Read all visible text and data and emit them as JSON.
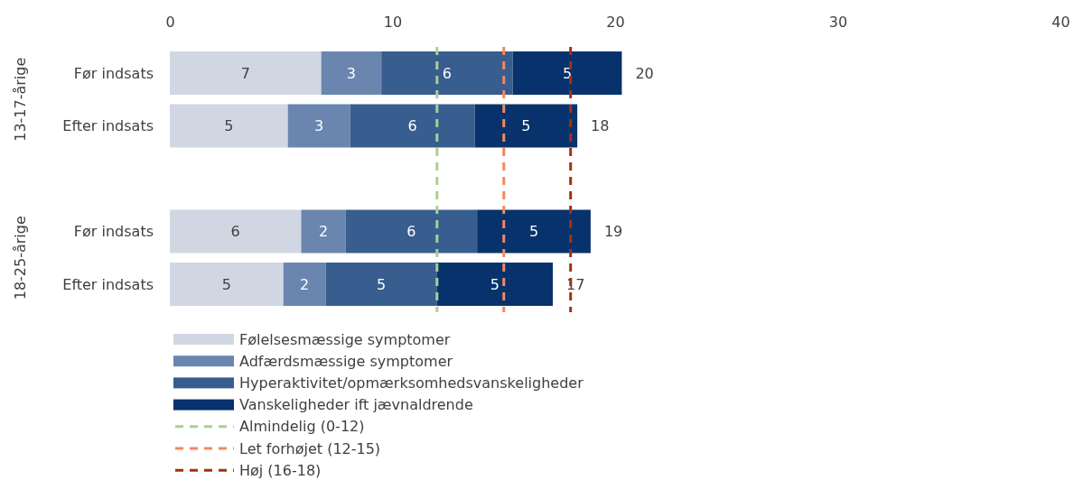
{
  "chart_data": {
    "type": "bar",
    "orientation": "horizontal",
    "stacked": true,
    "categories": [
      "Før indsats",
      "Efter indsats",
      null,
      "Før indsats",
      "Efter indsats"
    ],
    "series": [
      {
        "name": "Følelsesmæssige symptomer",
        "color": "#d0d7e3",
        "values": [
          6.8,
          5.3,
          null,
          5.9,
          5.1
        ],
        "value_labels": [
          "7",
          "5",
          null,
          "6",
          "5"
        ]
      },
      {
        "name": "Adfærdsmæssige symptomer",
        "color": "#6a86ae",
        "values": [
          2.7,
          2.8,
          null,
          2.0,
          1.9
        ],
        "value_labels": [
          "3",
          "3",
          null,
          "2",
          "2"
        ]
      },
      {
        "name": "Hyperaktivitet/opmærksomhedsvanskeligheder",
        "color": "#385d8f",
        "values": [
          5.9,
          5.6,
          null,
          5.9,
          5.0
        ],
        "value_labels": [
          "6",
          "6",
          null,
          "6",
          "5"
        ]
      },
      {
        "name": "Vanskeligheder ift jævnaldrende",
        "color": "#08326c",
        "values": [
          4.9,
          4.6,
          null,
          5.1,
          5.2
        ],
        "value_labels": [
          "5",
          "5",
          null,
          "5",
          "5"
        ]
      }
    ],
    "totals": [
      "20",
      "18",
      null,
      "19",
      "17"
    ],
    "xlim": [
      0,
      40
    ],
    "xticks": [
      0,
      10,
      20,
      30,
      40
    ],
    "ref_lines": [
      {
        "axis": "x",
        "value": 12,
        "label": "Almindelig (0-12)",
        "color": "#a9d18e",
        "line_style": "dashed"
      },
      {
        "axis": "x",
        "value": 15,
        "label": "Let forhøjet (12-15)",
        "color": "#f4895f",
        "line_style": "dashed"
      },
      {
        "axis": "x",
        "value": 18,
        "label": "Høj (16-18)",
        "color": "#a5300f",
        "line_style": "dashed"
      }
    ],
    "annotations": [
      "13-17-årige",
      "18-25-årige"
    ],
    "legend": "bottom left",
    "grid": false
  }
}
